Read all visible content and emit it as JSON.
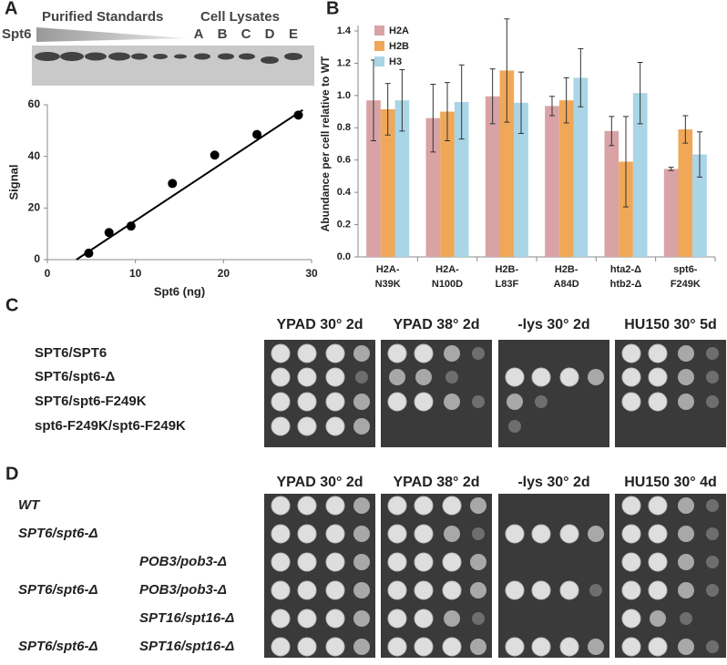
{
  "panel_labels": [
    "A",
    "B",
    "C",
    "D"
  ],
  "blot": {
    "title_left": "Purified Standards",
    "title_right": "Cell Lysates",
    "protein": "Spt6",
    "lanes": [
      "A",
      "B",
      "C",
      "D",
      "E"
    ]
  },
  "chart_data": [
    {
      "type": "scatter",
      "x_label": "Spt6 (ng)",
      "y_label": "Signal",
      "x": [
        4.7,
        7,
        9.5,
        14.2,
        19,
        23.8,
        28.5
      ],
      "values": [
        2.5,
        10.5,
        13,
        29.5,
        40.5,
        48.5,
        56
      ],
      "color": "#000000",
      "trendline": {
        "x": [
          3.3,
          29
        ],
        "y": [
          0,
          58
        ]
      },
      "xlim": [
        0,
        30
      ],
      "ylim": [
        0,
        60
      ],
      "xticks": [
        0,
        10,
        20,
        30
      ],
      "yticks": [
        0,
        20,
        40,
        60
      ]
    },
    {
      "type": "bar",
      "y_label": "Abundance per cell relative to WT",
      "categories": [
        [
          "H2A-",
          "N39K"
        ],
        [
          "H2A-",
          "N100D"
        ],
        [
          "H2B-",
          "L83F"
        ],
        [
          "H2B-",
          "A84D"
        ],
        [
          "hta2-Δ",
          "htb2-Δ"
        ],
        [
          "spt6-",
          "F249K"
        ]
      ],
      "series": [
        {
          "name": "H2A",
          "color": "#d9a3a5",
          "values": [
            0.97,
            0.86,
            0.995,
            0.935,
            0.78,
            0.545
          ],
          "errors": [
            0.25,
            0.21,
            0.17,
            0.06,
            0.09,
            0.01
          ]
        },
        {
          "name": "H2B",
          "color": "#f0a858",
          "values": [
            0.915,
            0.9,
            1.155,
            0.97,
            0.59,
            0.79
          ],
          "errors": [
            0.16,
            0.18,
            0.32,
            0.14,
            0.28,
            0.085
          ]
        },
        {
          "name": "H3",
          "color": "#a9d5e6",
          "values": [
            0.97,
            0.96,
            0.955,
            1.11,
            1.015,
            0.635
          ],
          "errors": [
            0.19,
            0.23,
            0.19,
            0.18,
            0.19,
            0.14
          ]
        }
      ],
      "ylim": [
        0,
        1.4
      ],
      "yticks": [
        {
          "value": 0,
          "label": "0.0"
        },
        0.2,
        0.4,
        0.6,
        0.8,
        {
          "value": 1,
          "label": "1.0"
        },
        1.2,
        1.4
      ],
      "legend": "upper-left"
    }
  ],
  "spot_assays": [
    {
      "headers": [
        "YPAD 30° 2d",
        "YPAD 38° 2d",
        "-lys 30° 2d",
        "HU150 30° 5d"
      ],
      "rows": [
        {
          "strain": "SPT6/SPT6"
        },
        {
          "strain": "SPT6/spt6-Δ"
        },
        {
          "strain": "SPT6/spt6-F249K"
        },
        {
          "strain": "spt6-F249K/spt6-F249K"
        }
      ]
    },
    {
      "headers": [
        "YPAD 30° 2d",
        "YPAD 38° 2d",
        "-lys 30° 2d",
        "HU150 30° 4d"
      ],
      "rows": [
        {
          "strain": "WT"
        },
        {
          "strain": "SPT6/spt6-Δ"
        },
        {
          "second": "POB3/pob3-Δ"
        },
        {
          "strain": "SPT6/spt6-Δ",
          "second": "POB3/pob3-Δ"
        },
        {
          "second": "SPT16/spt16-Δ"
        },
        {
          "strain": "SPT6/spt6-Δ",
          "second": "SPT16/spt16-Δ"
        }
      ]
    }
  ]
}
